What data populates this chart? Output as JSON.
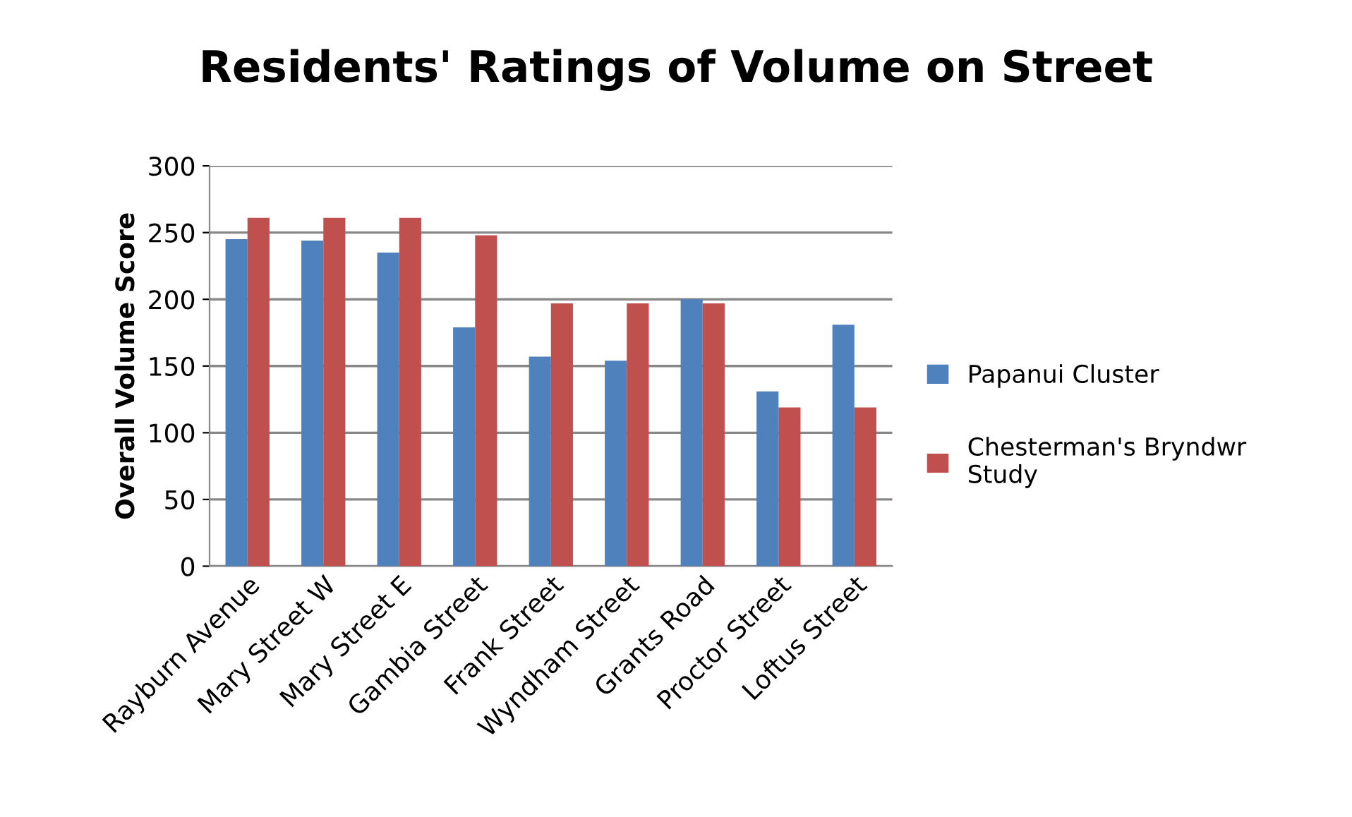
{
  "chart_data": {
    "type": "bar",
    "title": "Residents' Ratings of Volume on Street",
    "ylabel": "Overall Volume Score",
    "categories": [
      "Rayburn Avenue",
      "Mary Street W",
      "Mary Street E",
      "Gambia Street",
      "Frank Street",
      "Wyndham Street",
      "Grants Road",
      "Proctor Street",
      "Loftus Street"
    ],
    "series": [
      {
        "name": "Papanui Cluster",
        "color": "#4f81bd",
        "values": [
          245,
          244,
          235,
          179,
          157,
          154,
          200,
          131,
          181
        ]
      },
      {
        "name": "Chesterman's Bryndwr Study",
        "color": "#c0504d",
        "values": [
          261,
          261,
          261,
          248,
          197,
          197,
          197,
          119,
          119
        ]
      }
    ],
    "ylim": [
      0,
      300
    ],
    "yticks": [
      0,
      50,
      100,
      150,
      200,
      250,
      300
    ],
    "grid": "y",
    "legend": "right"
  }
}
